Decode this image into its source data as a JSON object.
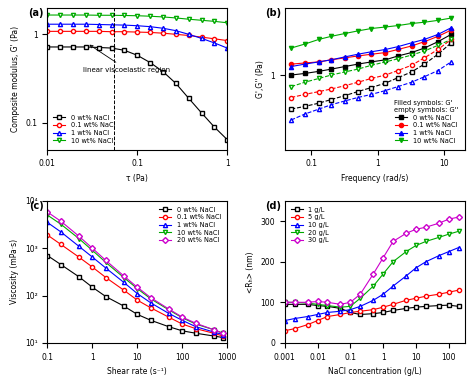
{
  "chart_data": [
    {
      "type": "line",
      "title": "(a)",
      "x_label": "τ (Pa)",
      "y_label": "Composite modulus, G' (Pa)",
      "log": true,
      "legend": "lower left",
      "annotation": "linear viscoelastic region",
      "vline": 0.055,
      "x": [
        0.01,
        0.0139,
        0.0193,
        0.0268,
        0.0373,
        0.0518,
        0.072,
        0.1,
        0.139,
        0.193,
        0.268,
        0.373,
        0.518,
        0.72,
        1.0
      ],
      "xlim": [
        0.01,
        1
      ],
      "xticks": [
        0.01,
        0.1,
        1
      ],
      "ylim": [
        0.05,
        2
      ],
      "yticks": [
        0.1,
        1
      ],
      "series": [
        {
          "name": "0 wt% NaCl",
          "color": "#000000",
          "marker": "square",
          "values": [
            0.72,
            0.72,
            0.72,
            0.72,
            0.71,
            0.7,
            0.66,
            0.58,
            0.48,
            0.38,
            0.28,
            0.19,
            0.13,
            0.09,
            0.065
          ]
        },
        {
          "name": "0.1 wt% NaCl",
          "color": "#ff0000",
          "marker": "circle",
          "values": [
            1.08,
            1.08,
            1.08,
            1.08,
            1.08,
            1.07,
            1.07,
            1.06,
            1.05,
            1.03,
            1.0,
            0.97,
            0.93,
            0.89,
            0.85
          ]
        },
        {
          "name": "1 wt% NaCl",
          "color": "#0000ff",
          "marker": "triangle_up",
          "values": [
            1.3,
            1.3,
            1.3,
            1.3,
            1.29,
            1.28,
            1.27,
            1.25,
            1.22,
            1.17,
            1.1,
            1.0,
            0.9,
            0.8,
            0.7
          ]
        },
        {
          "name": "10 wt% NaCl",
          "color": "#00aa00",
          "marker": "triangle_down",
          "values": [
            1.65,
            1.65,
            1.65,
            1.65,
            1.64,
            1.64,
            1.63,
            1.62,
            1.6,
            1.57,
            1.53,
            1.48,
            1.44,
            1.4,
            1.35
          ]
        }
      ]
    },
    {
      "type": "line",
      "title": "(b)",
      "x_label": "Frequency (rad/s)",
      "y_label": "G',G'' (Pa)",
      "log": true,
      "legend": "lower right",
      "legend_notes": [
        "Filled symbols: G'",
        "empty symbols: G''"
      ],
      "x": [
        0.05,
        0.08,
        0.13,
        0.2,
        0.32,
        0.5,
        0.8,
        1.3,
        2,
        3.2,
        5,
        8,
        12.6
      ],
      "xlim": [
        0.04,
        20
      ],
      "xticks": [
        0.1,
        1,
        10
      ],
      "ylim": [
        0.1,
        8
      ],
      "yticks": [
        1
      ],
      "series": [
        {
          "name": "0 wt% NaCl",
          "color": "#000000",
          "marker": "square",
          "values": [
            1.0,
            1.05,
            1.12,
            1.2,
            1.3,
            1.4,
            1.5,
            1.6,
            1.8,
            2.0,
            2.3,
            2.8,
            3.5
          ],
          "loss_values": [
            0.35,
            0.38,
            0.42,
            0.47,
            0.53,
            0.6,
            0.68,
            0.78,
            0.92,
            1.1,
            1.4,
            1.9,
            2.7
          ]
        },
        {
          "name": "0.1 wt% NaCl",
          "color": "#ff0000",
          "marker": "circle",
          "values": [
            1.4,
            1.45,
            1.5,
            1.6,
            1.7,
            1.8,
            1.9,
            2.0,
            2.2,
            2.45,
            2.8,
            3.3,
            4.0
          ],
          "loss_values": [
            0.5,
            0.55,
            0.6,
            0.65,
            0.72,
            0.8,
            0.9,
            1.0,
            1.15,
            1.35,
            1.7,
            2.2,
            3.0
          ]
        },
        {
          "name": "1 wt% NaCl",
          "color": "#0000ff",
          "marker": "triangle_up",
          "values": [
            1.3,
            1.4,
            1.5,
            1.6,
            1.75,
            1.9,
            2.05,
            2.2,
            2.4,
            2.7,
            3.0,
            3.5,
            4.3
          ],
          "loss_values": [
            0.25,
            0.3,
            0.35,
            0.4,
            0.45,
            0.5,
            0.55,
            0.62,
            0.7,
            0.8,
            0.95,
            1.15,
            1.5
          ]
        },
        {
          "name": "10 wt% NaCl",
          "color": "#00aa00",
          "marker": "triangle_down",
          "values": [
            2.3,
            2.6,
            3.0,
            3.3,
            3.6,
            3.9,
            4.2,
            4.4,
            4.6,
            4.9,
            5.1,
            5.4,
            5.8
          ],
          "loss_values": [
            0.7,
            0.8,
            0.9,
            1.0,
            1.1,
            1.2,
            1.35,
            1.5,
            1.65,
            1.85,
            2.1,
            2.5,
            3.0
          ]
        }
      ]
    },
    {
      "type": "line",
      "title": "(c)",
      "x_label": "Shear rate (s⁻¹)",
      "y_label": "Viscosity (mPa·s)",
      "log": true,
      "legend": "upper right",
      "x": [
        0.1,
        0.2,
        0.5,
        1,
        2,
        5,
        10,
        20,
        50,
        100,
        200,
        500,
        800
      ],
      "xlim": [
        0.1,
        1000
      ],
      "xticks": [
        0.1,
        1,
        10,
        100,
        1000
      ],
      "ylim": [
        10,
        10000
      ],
      "yticks": [
        {
          "value": 10,
          "label": "10¹"
        },
        {
          "value": 100,
          "label": "10²"
        },
        {
          "value": 1000,
          "label": "10³"
        },
        {
          "value": 10000,
          "label": "10⁴"
        }
      ],
      "series": [
        {
          "name": "0 wt% NaCl",
          "color": "#000000",
          "marker": "square",
          "values": [
            700,
            450,
            250,
            150,
            95,
            60,
            40,
            30,
            22,
            18,
            16,
            14,
            13
          ]
        },
        {
          "name": "0.1 wt% NaCl",
          "color": "#ff0000",
          "marker": "circle",
          "values": [
            1900,
            1200,
            650,
            400,
            240,
            130,
            80,
            55,
            35,
            25,
            20,
            16,
            14
          ]
        },
        {
          "name": "1 wt% NaCl",
          "color": "#0000ff",
          "marker": "triangle_up",
          "values": [
            3500,
            2200,
            1100,
            650,
            380,
            190,
            110,
            70,
            42,
            30,
            22,
            17,
            15
          ]
        },
        {
          "name": "10 wt% NaCl",
          "color": "#00aa00",
          "marker": "triangle_down",
          "values": [
            5000,
            3200,
            1600,
            900,
            500,
            240,
            140,
            85,
            50,
            34,
            25,
            19,
            16
          ]
        },
        {
          "name": "20 wt% NaCl",
          "color": "#cc00cc",
          "marker": "diamond",
          "values": [
            5800,
            3700,
            1800,
            1000,
            550,
            260,
            150,
            90,
            52,
            35,
            26,
            19,
            16
          ]
        }
      ]
    },
    {
      "type": "line",
      "title": "(d)",
      "x_label": "NaCl concentration (g/L)",
      "y_label": "<Rₕ> (nm)",
      "log": "x",
      "legend": "upper left",
      "x": [
        0.001,
        0.002,
        0.005,
        0.01,
        0.02,
        0.05,
        0.1,
        0.2,
        0.5,
        1,
        2,
        5,
        10,
        20,
        50,
        100,
        200
      ],
      "xlim": [
        0.001,
        300
      ],
      "xticks": [
        0.001,
        0.01,
        0.1,
        1,
        10,
        100
      ],
      "ylim": [
        0,
        350
      ],
      "yticks": [
        0,
        100,
        200,
        300
      ],
      "series": [
        {
          "name": "1 g/L",
          "color": "#000000",
          "marker": "square",
          "values": [
            95,
            95,
            95,
            92,
            90,
            85,
            75,
            70,
            72,
            75,
            80,
            85,
            88,
            90,
            92,
            93,
            90
          ]
        },
        {
          "name": "5 g/L",
          "color": "#ff0000",
          "marker": "circle",
          "values": [
            30,
            35,
            45,
            55,
            65,
            70,
            75,
            78,
            82,
            88,
            95,
            105,
            110,
            115,
            120,
            125,
            130
          ]
        },
        {
          "name": "10 g/L",
          "color": "#0000ff",
          "marker": "triangle_up",
          "values": [
            55,
            60,
            65,
            70,
            75,
            78,
            82,
            90,
            105,
            120,
            140,
            165,
            185,
            200,
            215,
            225,
            235
          ]
        },
        {
          "name": "20 g/L",
          "color": "#00aa00",
          "marker": "triangle_down",
          "values": [
            100,
            100,
            98,
            95,
            92,
            88,
            90,
            110,
            140,
            170,
            200,
            225,
            240,
            250,
            260,
            268,
            275
          ]
        },
        {
          "name": "30 g/L",
          "color": "#cc00cc",
          "marker": "diamond",
          "values": [
            100,
            100,
            100,
            102,
            100,
            95,
            100,
            120,
            170,
            210,
            250,
            270,
            280,
            285,
            295,
            305,
            310
          ]
        }
      ]
    }
  ]
}
